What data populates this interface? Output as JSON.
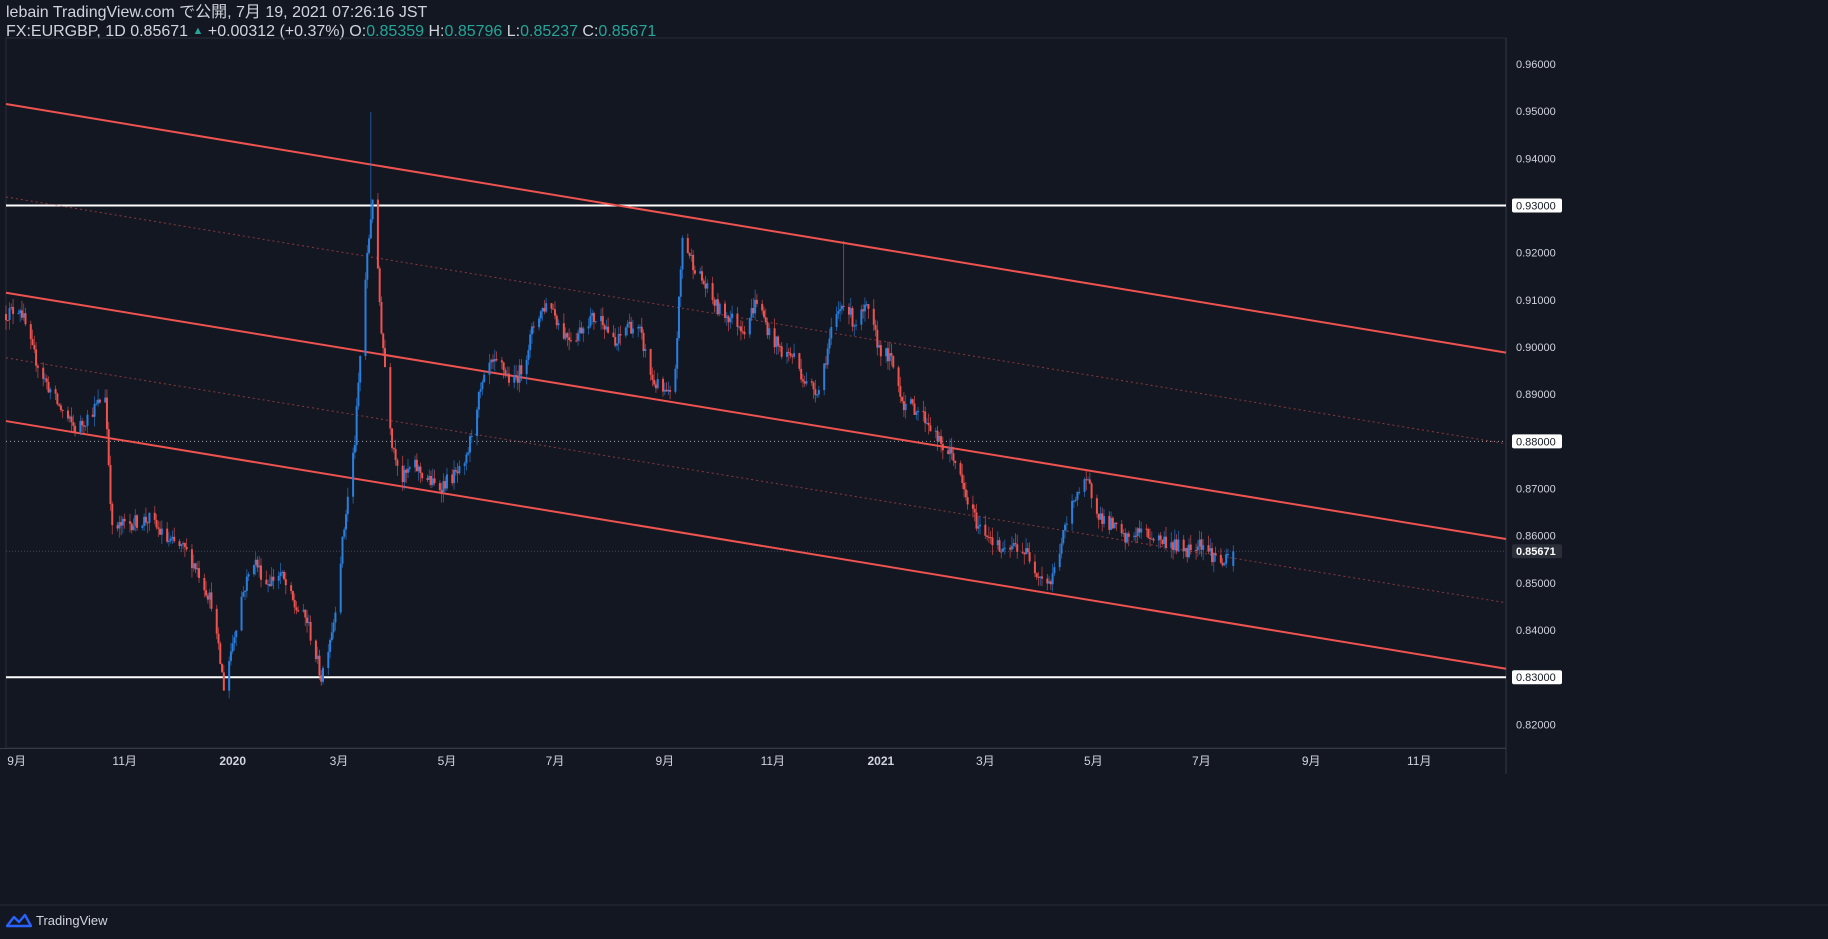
{
  "header": {
    "publisher": "lebain TradingView.com で公開, 7月 19, 2021 07:26:16 JST",
    "symbol": "FX:EURGBP, 1D",
    "last": "0.85671",
    "change": "+0.00312 (+0.37%)",
    "o_label": "O:",
    "o_value": "0.85359",
    "h_label": "H:",
    "h_value": "0.85796",
    "l_label": "L:",
    "l_value": "0.85237",
    "c_label": "C:",
    "c_value": "0.85671"
  },
  "footer": {
    "brand": "TradingView",
    "icon": "tradingview-logo-icon"
  },
  "colors": {
    "background": "#131722",
    "bull": "#2a7fde",
    "bear": "#ef5350",
    "channel": "#ef5350",
    "level": "#ffffff",
    "axis_text": "#d1d4dc",
    "price_label_bg": "#ffffff",
    "price_label_text": "#131722",
    "change_green": "#26a69a"
  },
  "chart_data": {
    "type": "candlestick",
    "symbol": "FX:EURGBP",
    "interval": "1D",
    "ylim": [
      0.815,
      0.9655
    ],
    "yticks": [
      "0.96000",
      "0.95000",
      "0.94000",
      "0.93000",
      "0.92000",
      "0.91000",
      "0.90000",
      "0.89000",
      "0.88000",
      "0.87000",
      "0.86000",
      "0.85000",
      "0.84000",
      "0.83000",
      "0.82000"
    ],
    "highlighted_levels": [
      "0.93000",
      "0.88000",
      "0.85671",
      "0.83000"
    ],
    "current_price": "0.85671",
    "x_domain": [
      "2019-08-26",
      "2021-12-20"
    ],
    "xticks": [
      {
        "date": "2019-09-01",
        "label": "9月"
      },
      {
        "date": "2019-11-01",
        "label": "11月"
      },
      {
        "date": "2020-01-01",
        "label": "2020"
      },
      {
        "date": "2020-03-01",
        "label": "3月"
      },
      {
        "date": "2020-05-01",
        "label": "5月"
      },
      {
        "date": "2020-07-01",
        "label": "7月"
      },
      {
        "date": "2020-09-01",
        "label": "9月"
      },
      {
        "date": "2020-11-01",
        "label": "11月"
      },
      {
        "date": "2021-01-01",
        "label": "2021"
      },
      {
        "date": "2021-03-01",
        "label": "3月"
      },
      {
        "date": "2021-05-01",
        "label": "5月"
      },
      {
        "date": "2021-07-01",
        "label": "7月"
      },
      {
        "date": "2021-09-01",
        "label": "9月"
      },
      {
        "date": "2021-11-01",
        "label": "11月"
      }
    ],
    "horizontal_lines": [
      {
        "y": 0.93,
        "style": "solid"
      },
      {
        "y": 0.83,
        "style": "solid"
      },
      {
        "y": 0.88,
        "style": "dotted"
      }
    ],
    "channel_lines": [
      {
        "style": "solid",
        "from": {
          "date": "2019-08-26",
          "y": 0.9515
        },
        "to": {
          "date": "2021-12-20",
          "y": 0.8988
        }
      },
      {
        "style": "dotted",
        "from": {
          "date": "2019-08-26",
          "y": 0.9318
        },
        "to": {
          "date": "2021-12-20",
          "y": 0.8795
        }
      },
      {
        "style": "solid",
        "from": {
          "date": "2019-08-26",
          "y": 0.9115
        },
        "to": {
          "date": "2021-12-20",
          "y": 0.8593
        }
      },
      {
        "style": "dotted",
        "from": {
          "date": "2019-08-26",
          "y": 0.8977
        },
        "to": {
          "date": "2021-12-20",
          "y": 0.8458
        }
      },
      {
        "style": "solid",
        "from": {
          "date": "2019-08-26",
          "y": 0.8843
        },
        "to": {
          "date": "2021-12-20",
          "y": 0.8318
        }
      }
    ],
    "close_path": [
      [
        "2019-08-26",
        0.907
      ],
      [
        "2019-09-03",
        0.9085
      ],
      [
        "2019-09-10",
        0.899
      ],
      [
        "2019-09-17",
        0.893
      ],
      [
        "2019-09-24",
        0.888
      ],
      [
        "2019-10-01",
        0.884
      ],
      [
        "2019-10-05",
        0.8825
      ],
      [
        "2019-10-15",
        0.887
      ],
      [
        "2019-10-21",
        0.89
      ],
      [
        "2019-10-25",
        0.861
      ],
      [
        "2019-11-01",
        0.8625
      ],
      [
        "2019-11-15",
        0.8635
      ],
      [
        "2019-11-25",
        0.859
      ],
      [
        "2019-12-05",
        0.857
      ],
      [
        "2019-12-12",
        0.853
      ],
      [
        "2019-12-20",
        0.846
      ],
      [
        "2019-12-27",
        0.828
      ],
      [
        "2020-01-06",
        0.847
      ],
      [
        "2020-01-13",
        0.855
      ],
      [
        "2020-01-20",
        0.85
      ],
      [
        "2020-01-28",
        0.852
      ],
      [
        "2020-02-05",
        0.845
      ],
      [
        "2020-02-12",
        0.842
      ],
      [
        "2020-02-20",
        0.83
      ],
      [
        "2020-02-27",
        0.842
      ],
      [
        "2020-03-05",
        0.865
      ],
      [
        "2020-03-10",
        0.88
      ],
      [
        "2020-03-15",
        0.91
      ],
      [
        "2020-03-20",
        0.932
      ],
      [
        "2020-03-25",
        0.904
      ],
      [
        "2020-03-31",
        0.88
      ],
      [
        "2020-04-06",
        0.872
      ],
      [
        "2020-04-12",
        0.875
      ],
      [
        "2020-04-20",
        0.872
      ],
      [
        "2020-04-26",
        0.87
      ],
      [
        "2020-05-02",
        0.872
      ],
      [
        "2020-05-11",
        0.874
      ],
      [
        "2020-05-18",
        0.888
      ],
      [
        "2020-05-25",
        0.896
      ],
      [
        "2020-06-01",
        0.896
      ],
      [
        "2020-06-07",
        0.892
      ],
      [
        "2020-06-13",
        0.896
      ],
      [
        "2020-06-20",
        0.906
      ],
      [
        "2020-06-28",
        0.91
      ],
      [
        "2020-07-05",
        0.903
      ],
      [
        "2020-07-12",
        0.902
      ],
      [
        "2020-07-20",
        0.906
      ],
      [
        "2020-07-28",
        0.906
      ],
      [
        "2020-08-04",
        0.9
      ],
      [
        "2020-08-11",
        0.905
      ],
      [
        "2020-08-18",
        0.903
      ],
      [
        "2020-08-25",
        0.893
      ],
      [
        "2020-09-01",
        0.89
      ],
      [
        "2020-09-06",
        0.889
      ],
      [
        "2020-09-11",
        0.923
      ],
      [
        "2020-09-18",
        0.917
      ],
      [
        "2020-09-25",
        0.912
      ],
      [
        "2020-10-01",
        0.908
      ],
      [
        "2020-10-09",
        0.906
      ],
      [
        "2020-10-16",
        0.904
      ],
      [
        "2020-10-23",
        0.91
      ],
      [
        "2020-10-30",
        0.903
      ],
      [
        "2020-11-06",
        0.899
      ],
      [
        "2020-11-13",
        0.898
      ],
      [
        "2020-11-20",
        0.892
      ],
      [
        "2020-11-27",
        0.891
      ],
      [
        "2020-12-04",
        0.903
      ],
      [
        "2020-12-11",
        0.91
      ],
      [
        "2020-12-17",
        0.905
      ],
      [
        "2020-12-24",
        0.908
      ],
      [
        "2020-12-31",
        0.9
      ],
      [
        "2021-01-07",
        0.897
      ],
      [
        "2021-01-14",
        0.888
      ],
      [
        "2021-01-21",
        0.887
      ],
      [
        "2021-01-28",
        0.884
      ],
      [
        "2021-02-04",
        0.879
      ],
      [
        "2021-02-11",
        0.877
      ],
      [
        "2021-02-18",
        0.868
      ],
      [
        "2021-02-25",
        0.862
      ],
      [
        "2021-03-04",
        0.86
      ],
      [
        "2021-03-11",
        0.856
      ],
      [
        "2021-03-18",
        0.858
      ],
      [
        "2021-03-25",
        0.856
      ],
      [
        "2021-03-31",
        0.852
      ],
      [
        "2021-04-07",
        0.85
      ],
      [
        "2021-04-14",
        0.86
      ],
      [
        "2021-04-21",
        0.869
      ],
      [
        "2021-04-28",
        0.871
      ],
      [
        "2021-05-05",
        0.864
      ],
      [
        "2021-05-12",
        0.862
      ],
      [
        "2021-05-19",
        0.859
      ],
      [
        "2021-05-26",
        0.861
      ],
      [
        "2021-06-02",
        0.86
      ],
      [
        "2021-06-09",
        0.859
      ],
      [
        "2021-06-16",
        0.858
      ],
      [
        "2021-06-23",
        0.857
      ],
      [
        "2021-06-30",
        0.859
      ],
      [
        "2021-07-07",
        0.856
      ],
      [
        "2021-07-14",
        0.854
      ],
      [
        "2021-07-19",
        0.85671
      ]
    ],
    "spikes": [
      {
        "date": "2020-03-19",
        "y": 0.9498,
        "kind": "high"
      },
      {
        "date": "2019-12-27",
        "y": 0.828,
        "kind": "low"
      },
      {
        "date": "2020-02-20",
        "y": 0.8282,
        "kind": "low"
      },
      {
        "date": "2020-12-11",
        "y": 0.9225,
        "kind": "high"
      },
      {
        "date": "2021-04-07",
        "y": 0.8485,
        "kind": "low"
      }
    ]
  }
}
